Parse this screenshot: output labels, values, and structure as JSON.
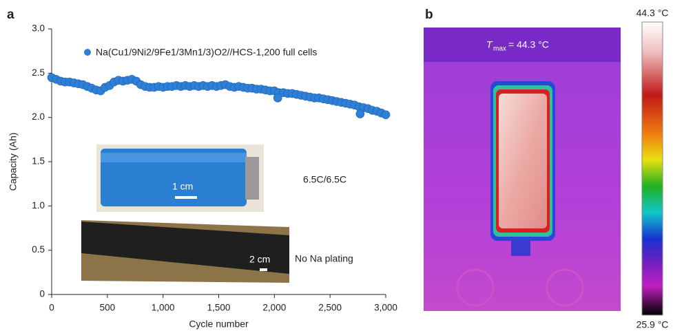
{
  "chart_data": {
    "type": "scatter",
    "panel_label": "a",
    "xlabel": "Cycle number",
    "ylabel": "Capacity (Ah)",
    "xlim": [
      0,
      3000
    ],
    "xticks": [
      0,
      500,
      {
        "value": 1000,
        "label": "1,000"
      },
      {
        "value": 1500,
        "label": "1,500"
      },
      {
        "value": 2000,
        "label": "2,000"
      },
      {
        "value": 2500,
        "label": "2,500"
      },
      {
        "value": 3000,
        "label": "3,000"
      }
    ],
    "ylim": [
      0,
      3.0
    ],
    "yticks": [
      0,
      0.5,
      {
        "value": 1.0,
        "label": "1.0"
      },
      1.5,
      {
        "value": 2.0,
        "label": "2.0"
      },
      2.5,
      {
        "value": 3.0,
        "label": "3.0"
      }
    ],
    "series": [
      {
        "name": "Na(Cu1/9Ni2/9Fe1/3Mn1/3)O2//HCS-1,200 full cells",
        "color": "#2f7fd6",
        "x": [
          0,
          40,
          80,
          120,
          160,
          200,
          240,
          280,
          320,
          360,
          400,
          440,
          480,
          520,
          560,
          600,
          640,
          680,
          720,
          760,
          800,
          840,
          880,
          920,
          960,
          1000,
          1040,
          1080,
          1120,
          1160,
          1200,
          1240,
          1280,
          1320,
          1360,
          1400,
          1440,
          1480,
          1520,
          1560,
          1600,
          1640,
          1680,
          1720,
          1760,
          1800,
          1840,
          1880,
          1920,
          1960,
          2000,
          2040,
          2080,
          2120,
          2160,
          2200,
          2240,
          2280,
          2320,
          2360,
          2400,
          2440,
          2480,
          2520,
          2560,
          2600,
          2640,
          2680,
          2720,
          2760,
          2800,
          2840,
          2880,
          2920,
          2960,
          3000,
          2030,
          2770
        ],
        "values": [
          2.45,
          2.43,
          2.41,
          2.4,
          2.4,
          2.39,
          2.38,
          2.37,
          2.35,
          2.33,
          2.31,
          2.3,
          2.34,
          2.36,
          2.4,
          2.42,
          2.41,
          2.42,
          2.43,
          2.41,
          2.37,
          2.35,
          2.34,
          2.34,
          2.35,
          2.34,
          2.35,
          2.35,
          2.36,
          2.35,
          2.36,
          2.35,
          2.36,
          2.35,
          2.36,
          2.35,
          2.36,
          2.35,
          2.36,
          2.37,
          2.35,
          2.34,
          2.35,
          2.34,
          2.33,
          2.33,
          2.32,
          2.32,
          2.31,
          2.3,
          2.3,
          2.28,
          2.28,
          2.27,
          2.27,
          2.26,
          2.25,
          2.24,
          2.23,
          2.22,
          2.22,
          2.21,
          2.2,
          2.19,
          2.18,
          2.17,
          2.16,
          2.15,
          2.14,
          2.12,
          2.11,
          2.1,
          2.08,
          2.07,
          2.05,
          2.03,
          2.22,
          2.04
        ]
      }
    ],
    "annotations": [
      "6.5C/6.5C",
      "No Na plating",
      "1 cm",
      "2 cm"
    ]
  },
  "thermal_image": {
    "panel_label": "b",
    "annotation_symbol": "T",
    "annotation_subscript": "max",
    "annotation_value": "= 44.3 °C",
    "colorbar_max": "44.3 °C",
    "colorbar_min": "25.9 °C"
  }
}
